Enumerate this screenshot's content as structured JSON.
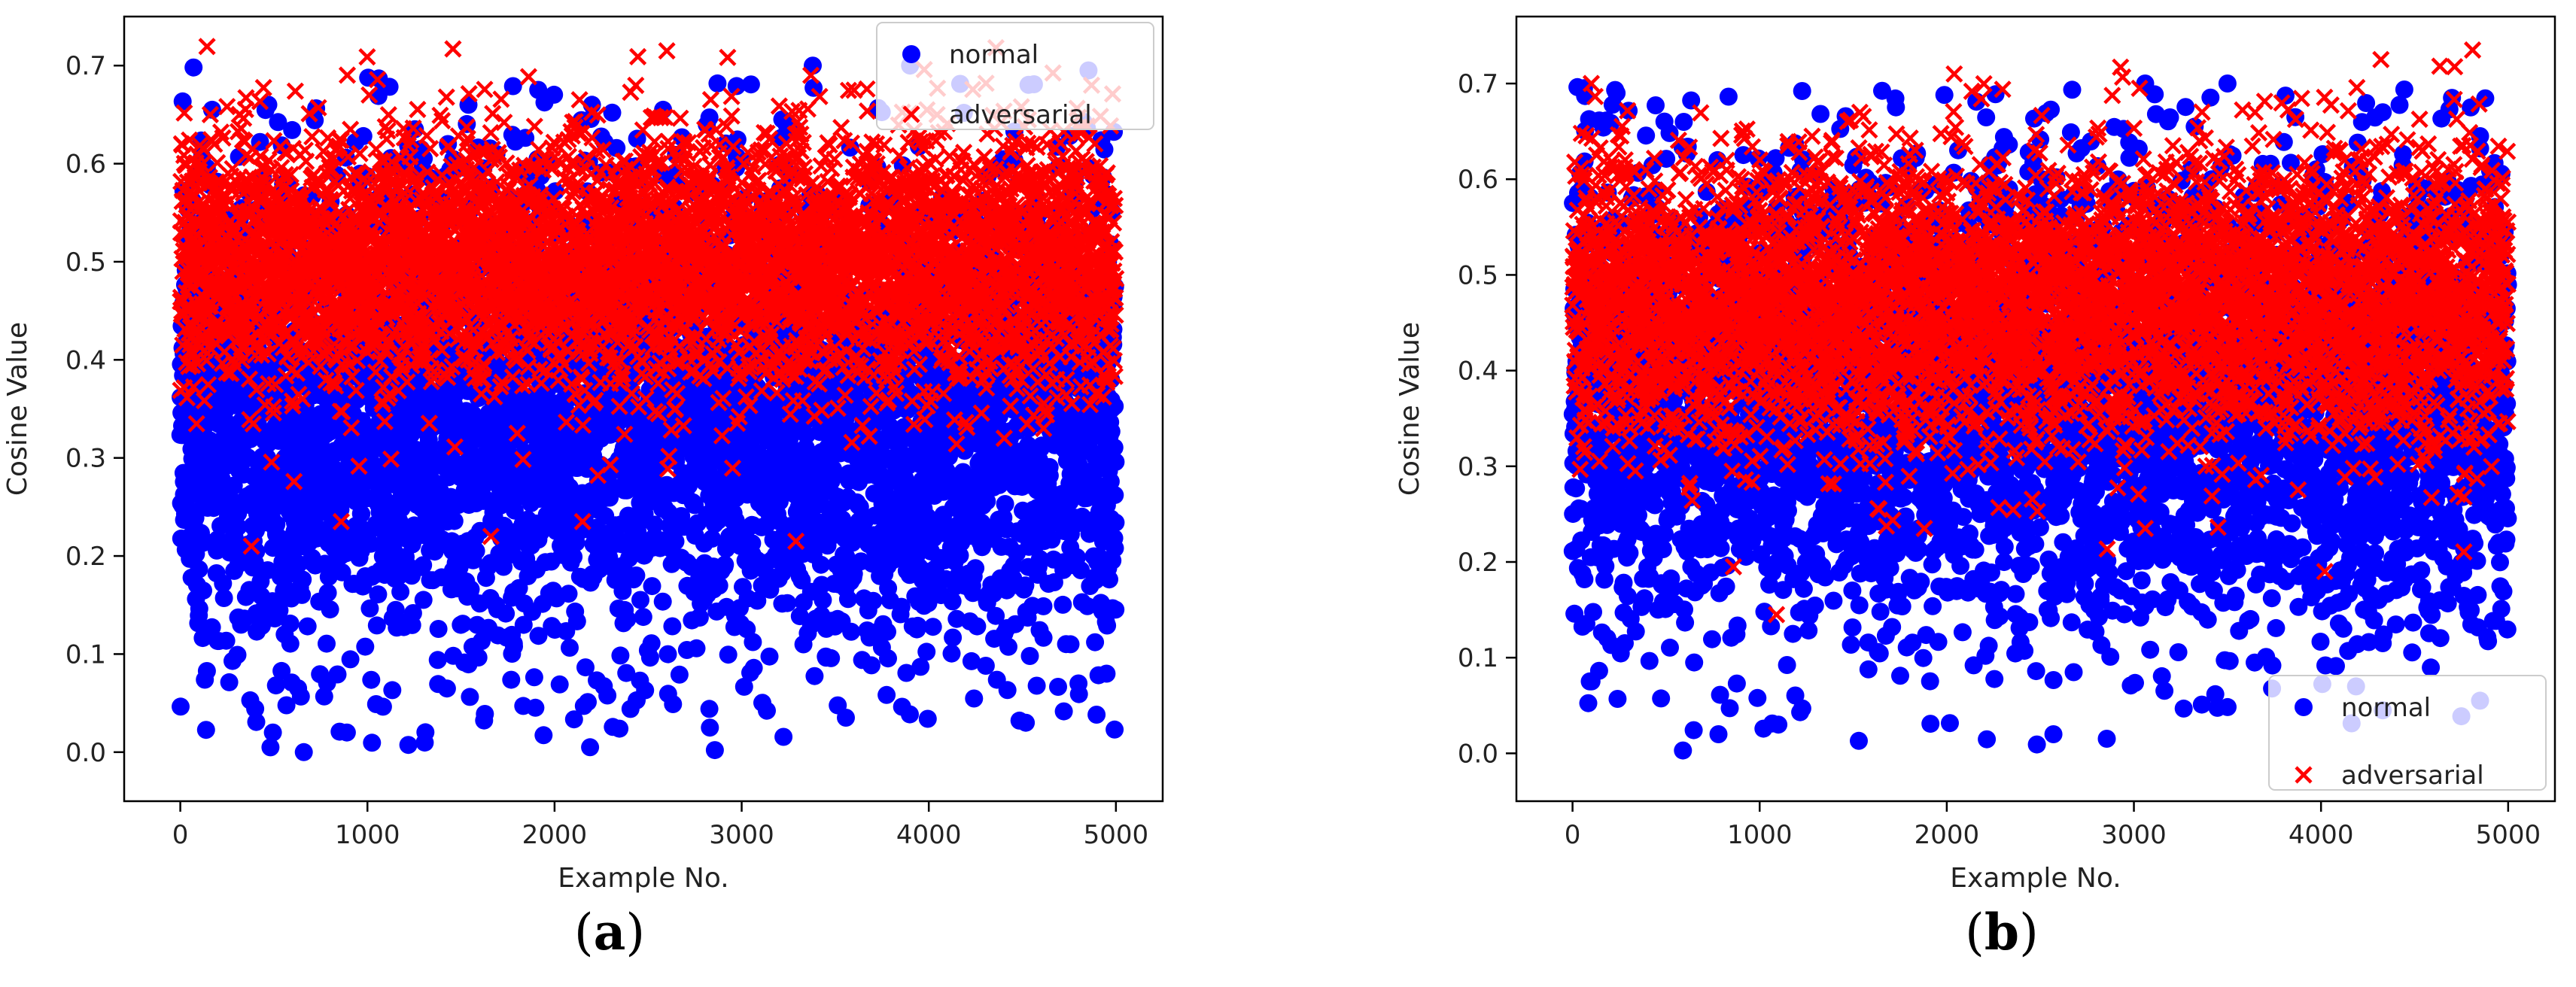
{
  "colors": {
    "normal": "#0000ff",
    "adversarial": "#ff0000",
    "axis": "#000000",
    "legend_border": "#cccccc"
  },
  "chart_data": [
    {
      "type": "scatter",
      "panel_caption_open": "(",
      "panel_caption_letter": "a",
      "panel_caption_close": ")",
      "xlabel": "Example No.",
      "ylabel": "Cosine Value",
      "xlim": [
        -300,
        5250
      ],
      "ylim": [
        -0.05,
        0.75
      ],
      "xticks": [
        0,
        1000,
        2000,
        3000,
        4000,
        5000
      ],
      "yticks": [
        0.0,
        0.1,
        0.2,
        0.3,
        0.4,
        0.5,
        0.6,
        0.7
      ],
      "legend_position": "top-right",
      "series": [
        {
          "name": "normal",
          "marker": "circle",
          "count": 5000,
          "distribution": {
            "mean": 0.35,
            "sd": 0.12,
            "min": 0.0,
            "max": 0.7
          },
          "highlight_points": [
            [
              660,
              0.0
            ],
            [
              2190,
              0.005
            ],
            [
              170,
              0.655
            ],
            [
              1540,
              0.66
            ],
            [
              2200,
              0.66
            ],
            [
              2580,
              0.655
            ],
            [
              3380,
              0.7
            ],
            [
              3900,
              0.7
            ],
            [
              4800,
              0.07
            ],
            [
              4950,
              0.08
            ],
            [
              1430,
              0.62
            ],
            [
              3240,
              0.64
            ],
            [
              890,
              0.02
            ],
            [
              2830,
              0.025
            ]
          ]
        },
        {
          "name": "adversarial",
          "marker": "x",
          "count": 5000,
          "distribution": {
            "mean": 0.5,
            "sd": 0.065,
            "min": 0.21,
            "max": 0.72
          },
          "highlight_points": [
            [
              2600,
              0.715
            ],
            [
              3370,
              0.69
            ],
            [
              160,
              0.65
            ],
            [
              1010,
              0.67
            ],
            [
              380,
              0.21
            ],
            [
              860,
              0.235
            ],
            [
              2150,
              0.235
            ],
            [
              3290,
              0.215
            ],
            [
              1660,
              0.22
            ],
            [
              4870,
              0.68
            ]
          ]
        }
      ]
    },
    {
      "type": "scatter",
      "panel_caption_open": "(",
      "panel_caption_letter": "b",
      "panel_caption_close": ")",
      "xlabel": "Example No.",
      "ylabel": "Cosine Value",
      "xlim": [
        -300,
        5250
      ],
      "ylim": [
        -0.05,
        0.77
      ],
      "xticks": [
        0,
        1000,
        2000,
        3000,
        4000,
        5000
      ],
      "yticks": [
        0.0,
        0.1,
        0.2,
        0.3,
        0.4,
        0.5,
        0.6,
        0.7
      ],
      "legend_position": "bottom-right",
      "series": [
        {
          "name": "normal",
          "marker": "circle",
          "count": 5000,
          "distribution": {
            "mean": 0.37,
            "sd": 0.12,
            "min": 0.0,
            "max": 0.7
          },
          "highlight_points": [
            [
              590,
              0.003
            ],
            [
              2570,
              0.02
            ],
            [
              180,
              0.66
            ],
            [
              3060,
              0.7
            ],
            [
              3500,
              0.7
            ],
            [
              4330,
              0.67
            ],
            [
              4700,
              0.685
            ],
            [
              4800,
              0.675
            ],
            [
              4850,
              0.645
            ],
            [
              4850,
              0.055
            ],
            [
              4330,
              0.045
            ],
            [
              1100,
              0.03
            ],
            [
              780,
              0.02
            ]
          ]
        },
        {
          "name": "adversarial",
          "marker": "x",
          "count": 5000,
          "distribution": {
            "mean": 0.47,
            "sd": 0.075,
            "min": 0.145,
            "max": 0.74
          },
          "highlight_points": [
            [
              4810,
              0.735
            ],
            [
              4320,
              0.725
            ],
            [
              100,
              0.7
            ],
            [
              2040,
              0.71
            ],
            [
              3030,
              0.695
            ],
            [
              1090,
              0.145
            ],
            [
              4020,
              0.19
            ],
            [
              860,
              0.195
            ],
            [
              1880,
              0.235
            ],
            [
              3060,
              0.235
            ]
          ]
        }
      ]
    }
  ]
}
